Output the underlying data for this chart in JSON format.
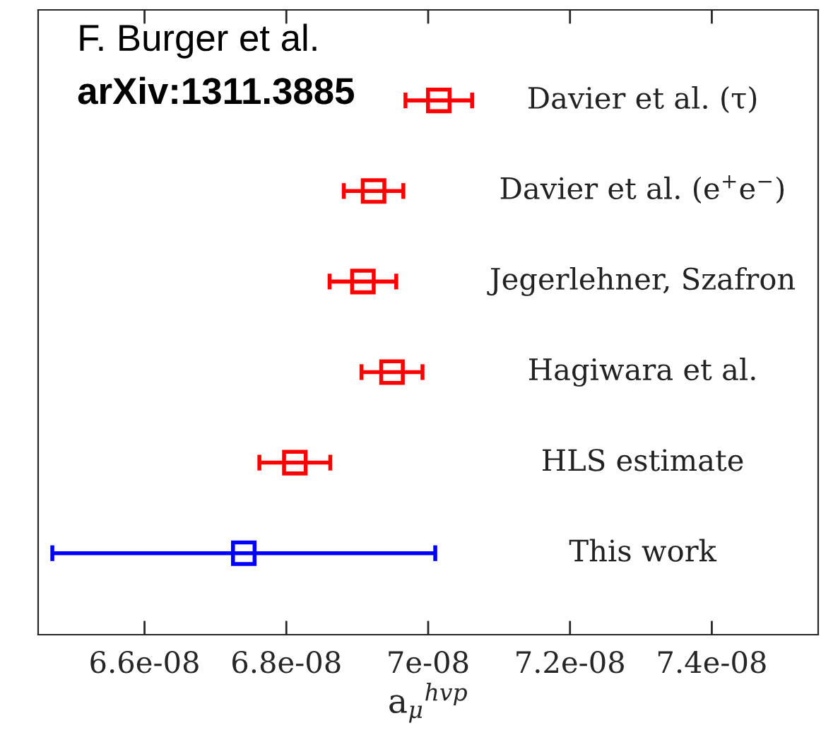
{
  "chart_data": {
    "type": "scatter",
    "orientation": "horizontal",
    "xlabel": "a$_{μ}$$^{hvp}$",
    "categories": [
      "Davier et al. (τ)",
      "Davier et al. (e$^{+}$e$^{−}$)",
      "Jegerlehner, Szafron",
      "Hagiwara et al.",
      "HLS estimate",
      "This work"
    ],
    "values": [
      7.015e-08,
      6.923e-08,
      6.908e-08,
      6.949e-08,
      6.812e-08,
      6.74e-08
    ],
    "errors": [
      4.7e-10,
      4.2e-10,
      4.7e-10,
      4.3e-10,
      5e-10,
      2.7e-09
    ],
    "colors": [
      "#ff0000",
      "#ff0000",
      "#ff0000",
      "#ff0000",
      "#ff0000",
      "#0000ff"
    ],
    "marker": "square",
    "xlim": [
      6.45e-08,
      7.55e-08
    ],
    "xticks": [
      {
        "value": 6.6e-08,
        "label": "6.6e-08"
      },
      {
        "value": 6.8e-08,
        "label": "6.8e-08"
      },
      {
        "value": 7e-08,
        "label": "7e-08"
      },
      {
        "value": 7.2e-08,
        "label": "7.2e-08"
      },
      {
        "value": 7.4e-08,
        "label": "7.4e-08"
      }
    ],
    "grid": false,
    "annotations": [
      "F. Burger et al.",
      "arXiv:1311.3885"
    ]
  }
}
